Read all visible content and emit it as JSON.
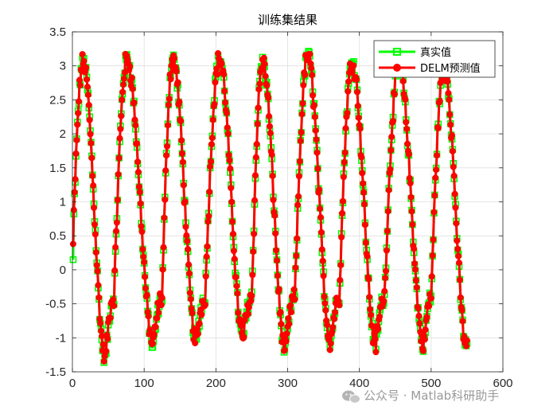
{
  "chart_data": {
    "type": "line",
    "title": "训练集结果",
    "xlabel": "",
    "ylabel": "",
    "xlim": [
      0,
      600
    ],
    "ylim": [
      -1.5,
      3.5
    ],
    "xticks": [
      0,
      100,
      200,
      300,
      400,
      500,
      600
    ],
    "xtick_labels": [
      "0",
      "100",
      "200",
      "300",
      "400",
      "500",
      "600"
    ],
    "yticks": [
      -1.5,
      -1,
      -0.5,
      0,
      0.5,
      1,
      1.5,
      2,
      2.5,
      3,
      3.5
    ],
    "ytick_labels": [
      "-1.5",
      "-1",
      "-0.5",
      "0",
      "0.5",
      "1",
      "1.5",
      "2",
      "2.5",
      "3",
      "3.5"
    ],
    "grid": true,
    "legend_position": "top-right",
    "periods": [
      {
        "start": 0,
        "peak_x": 15,
        "peak_y": 3.05,
        "trough_x": 46,
        "trough_y": -1.3
      },
      {
        "start": 58,
        "peak_x": 76,
        "peak_y": 3.1,
        "trough_x": 113,
        "trough_y": -1.1
      },
      {
        "start": 125,
        "peak_x": 140,
        "peak_y": 3.1,
        "trough_x": 173,
        "trough_y": -1.05
      },
      {
        "start": 185,
        "peak_x": 205,
        "peak_y": 3.1,
        "trough_x": 238,
        "trough_y": -1.0
      },
      {
        "start": 250,
        "peak_x": 265,
        "peak_y": 3.05,
        "trough_x": 297,
        "trough_y": -1.18
      },
      {
        "start": 310,
        "peak_x": 328,
        "peak_y": 3.15,
        "trough_x": 360,
        "trough_y": -1.05
      },
      {
        "start": 372,
        "peak_x": 390,
        "peak_y": 3.05,
        "trough_x": 423,
        "trough_y": -1.1
      },
      {
        "start": 435,
        "peak_x": 455,
        "peak_y": 3.0,
        "trough_x": 490,
        "trough_y": -1.1
      },
      {
        "start": 500,
        "peak_x": 518,
        "peak_y": 3.0,
        "trough_x": 550,
        "trough_y": -1.15
      }
    ],
    "x_end": 550,
    "series": [
      {
        "name": "真实值",
        "color": "#00ff00",
        "marker": "square",
        "y_first": 0.15
      },
      {
        "name": "DELM预测值",
        "color": "#ff0000",
        "marker": "circle",
        "y_first": 0.38
      }
    ]
  },
  "watermark": {
    "icon": "wechat-icon",
    "text": "公众号 · Matlab科研助手"
  }
}
